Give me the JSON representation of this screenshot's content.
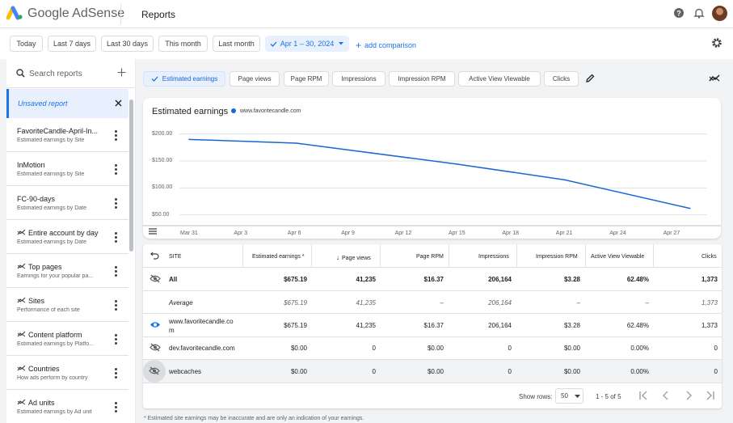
{
  "header": {
    "brand": "Google AdSense",
    "page_title": "Reports"
  },
  "filters": {
    "ranges": [
      "Today",
      "Last 7 days",
      "Last 30 days",
      "This month",
      "Last month"
    ],
    "selected_range": "Apr 1 – 30, 2024",
    "add_comparison": "add comparison"
  },
  "sidebar": {
    "search_placeholder": "Search reports",
    "unsaved": "Unsaved report",
    "items": [
      {
        "name": "FavoriteCandle-April-In...",
        "sub": "Estimated earnings by Site",
        "icon": ""
      },
      {
        "name": "InMotion",
        "sub": "Estimated earnings by Site",
        "icon": ""
      },
      {
        "name": "FC-90-days",
        "sub": "Estimated earnings by Date",
        "icon": ""
      },
      {
        "name": "Entire account by day",
        "sub": "Estimated earnings by Date",
        "icon": "trend-icon"
      },
      {
        "name": "Top pages",
        "sub": "Earnings for your popular pa...",
        "icon": "trend-icon"
      },
      {
        "name": "Sites",
        "sub": "Performance of each site",
        "icon": "trend-icon"
      },
      {
        "name": "Content platform",
        "sub": "Estimated earnings by Platfo...",
        "icon": "trend-icon"
      },
      {
        "name": "Countries",
        "sub": "How ads perform by country",
        "icon": "trend-icon"
      },
      {
        "name": "Ad units",
        "sub": "Estimated earnings by Ad unit",
        "icon": "trend-icon"
      }
    ]
  },
  "metrics": [
    "Estimated earnings",
    "Page views",
    "Page RPM",
    "Impressions",
    "Impression RPM",
    "Active View Viewable",
    "Clicks"
  ],
  "chart_data": {
    "type": "line",
    "title": "Estimated earnings",
    "series": [
      {
        "name": "www.favoritecandle.com",
        "color": "#1967d2",
        "x": [
          "Mar 31",
          "Apr 6",
          "Apr 15",
          "Apr 21",
          "Apr 28"
        ],
        "values": [
          190,
          183,
          144,
          115,
          62
        ]
      }
    ],
    "yticks": [
      "$200.00",
      "$150.00",
      "$100.00",
      "$50.00"
    ],
    "ylim": [
      30,
      210
    ],
    "xticks": [
      "Mar 31",
      "Apr 3",
      "Apr 6",
      "Apr 9",
      "Apr 12",
      "Apr 15",
      "Apr 18",
      "Apr 21",
      "Apr 24",
      "Apr 27"
    ],
    "grid": true
  },
  "table": {
    "columns": [
      "SITE",
      "Estimated earnings *",
      "Page views",
      "Page RPM",
      "Impressions",
      "Impression RPM",
      "Active View Viewable",
      "Clicks"
    ],
    "rows": [
      {
        "site": "All",
        "vals": [
          "$675.19",
          "41,235",
          "$16.37",
          "206,164",
          "$3.28",
          "62.48%",
          "1,373"
        ]
      },
      {
        "site": "Average",
        "vals": [
          "$675.19",
          "41,235",
          "–",
          "206,164",
          "–",
          "–",
          "1,373"
        ]
      },
      {
        "site": "www.favoritecandle.co m",
        "site1": "www.favoritecandle.co",
        "site2": "m",
        "vals": [
          "$675.19",
          "41,235",
          "$16.37",
          "206,164",
          "$3.28",
          "62.48%",
          "1,373"
        ]
      },
      {
        "site": "dev.favoritecandle.com",
        "vals": [
          "$0.00",
          "0",
          "$0.00",
          "0",
          "$0.00",
          "0.00%",
          "0"
        ]
      },
      {
        "site": "webcaches",
        "vals": [
          "$0.00",
          "0",
          "$0.00",
          "0",
          "$0.00",
          "0.00%",
          "0"
        ]
      }
    ],
    "show_rows_label": "Show rows:",
    "rows_per_page": "50",
    "pagination": "1 - 5 of 5"
  },
  "footnote": "* Estimated site earnings may be inaccurate and are only an indication of your earnings."
}
